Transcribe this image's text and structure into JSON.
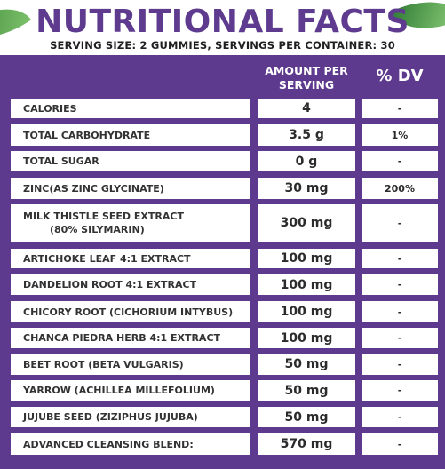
{
  "header": {
    "title": "NUTRITIONAL FACTS",
    "subtitle": "SERVING SIZE: 2 GUMMIES, SERVINGS PER CONTAINER: 30"
  },
  "columns": {
    "amount_line1": "AMOUNT PER",
    "amount_line2": "SERVING",
    "dv": "% DV"
  },
  "colors": {
    "panel": "#5d3a8d",
    "title": "#5e3b8e",
    "cell": "#ffffff"
  },
  "rows": [
    {
      "name": "CALORIES",
      "amount": "4",
      "dv": "-"
    },
    {
      "name": "TOTAL CARBOHYDRATE",
      "amount": "3.5 g",
      "dv": "1%"
    },
    {
      "name": "TOTAL SUGAR",
      "amount": "0 g",
      "dv": "-"
    },
    {
      "name": "ZINC(AS ZINC GLYCINATE)",
      "amount": "30 mg",
      "dv": "200%"
    },
    {
      "name": "MILK THISTLE SEED EXTRACT",
      "name_line2": "(80% SILYMARIN)",
      "amount": "300 mg",
      "dv": "-"
    },
    {
      "name": "ARTICHOKE LEAF 4:1 EXTRACT",
      "amount": "100 mg",
      "dv": "-"
    },
    {
      "name": "DANDELION ROOT 4:1 EXTRACT",
      "amount": "100 mg",
      "dv": "-"
    },
    {
      "name": "CHICORY ROOT (CICHORIUM INTYBUS)",
      "amount": "100 mg",
      "dv": "-"
    },
    {
      "name": "CHANCA PIEDRA HERB 4:1 EXTRACT",
      "amount": "100 mg",
      "dv": "-"
    },
    {
      "name": "BEET ROOT (BETA VULGARIS)",
      "amount": "50 mg",
      "dv": "-"
    },
    {
      "name": "YARROW (ACHILLEA MILLEFOLIUM)",
      "amount": "50 mg",
      "dv": "-"
    },
    {
      "name": "JUJUBE SEED (ZIZIPHUS JUJUBA)",
      "amount": "50 mg",
      "dv": "-"
    },
    {
      "name": "ADVANCED CLEANSING BLEND:",
      "amount": "570 mg",
      "dv": "-"
    }
  ]
}
